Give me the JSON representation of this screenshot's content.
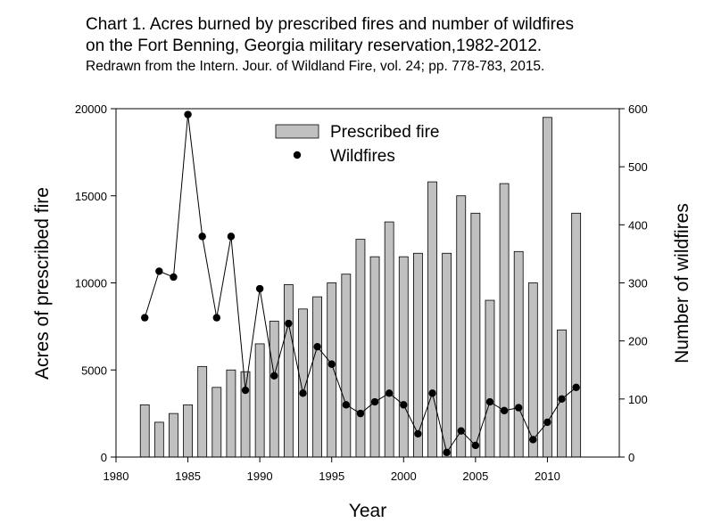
{
  "chart_data": {
    "type": "bar",
    "title_line1": "Chart 1. Acres burned by prescribed fires and number of wildfires",
    "title_line2": "on the Fort Benning, Georgia military reservation,1982-2012.",
    "subtitle": "Redrawn from the Intern. Jour. of Wildland Fire, vol. 24; pp. 778-783, 2015.",
    "xlabel": "Year",
    "ylabel_left": "Acres of prescribed fire",
    "ylabel_right": "Number of wildfires",
    "xlim": [
      1980,
      2015
    ],
    "ylim_left": [
      0,
      20000
    ],
    "ylim_right": [
      0,
      600
    ],
    "x_ticks": [
      1980,
      1985,
      1990,
      1995,
      2000,
      2005,
      2010
    ],
    "y_ticks_left": [
      0,
      5000,
      10000,
      15000,
      20000
    ],
    "y_ticks_right": [
      0,
      100,
      200,
      300,
      400,
      500,
      600
    ],
    "legend_position": "top-center",
    "grid": false,
    "colors": {
      "bar_fill": "#c0c0c0",
      "bar_stroke": "#000000",
      "line": "#000000",
      "marker": "#000000"
    },
    "x": [
      1982,
      1983,
      1984,
      1985,
      1986,
      1987,
      1988,
      1989,
      1990,
      1991,
      1992,
      1993,
      1994,
      1995,
      1996,
      1997,
      1998,
      1999,
      2000,
      2001,
      2002,
      2003,
      2004,
      2005,
      2006,
      2007,
      2008,
      2009,
      2010,
      2011,
      2012
    ],
    "series": [
      {
        "name": "Prescribed fire",
        "kind": "bar",
        "axis": "left",
        "values": [
          3000,
          2000,
          2500,
          3000,
          5200,
          4000,
          5000,
          4900,
          6500,
          7800,
          9900,
          8500,
          9200,
          10000,
          10500,
          12500,
          11500,
          13500,
          11500,
          11700,
          15800,
          11700,
          15000,
          14000,
          9000,
          15700,
          11800,
          10000,
          19500,
          7300,
          14000
        ]
      },
      {
        "name": "Wildfires",
        "kind": "line-marker",
        "axis": "right",
        "values": [
          240,
          320,
          310,
          590,
          380,
          240,
          380,
          115,
          290,
          140,
          230,
          110,
          190,
          160,
          90,
          75,
          95,
          110,
          90,
          40,
          110,
          8,
          45,
          20,
          95,
          80,
          85,
          30,
          60,
          100,
          120
        ]
      }
    ]
  }
}
